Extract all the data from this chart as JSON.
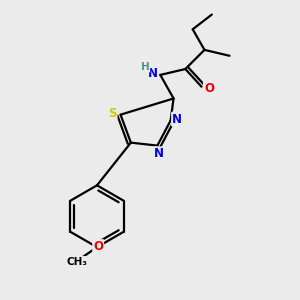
{
  "bg_color": "#ebebeb",
  "atom_colors": {
    "C": "#000000",
    "H": "#4a9a8a",
    "N": "#0000ee",
    "O": "#ee0000",
    "S": "#cccc00"
  },
  "bond_color": "#000000",
  "bond_width": 1.6,
  "font_size": 8.5
}
